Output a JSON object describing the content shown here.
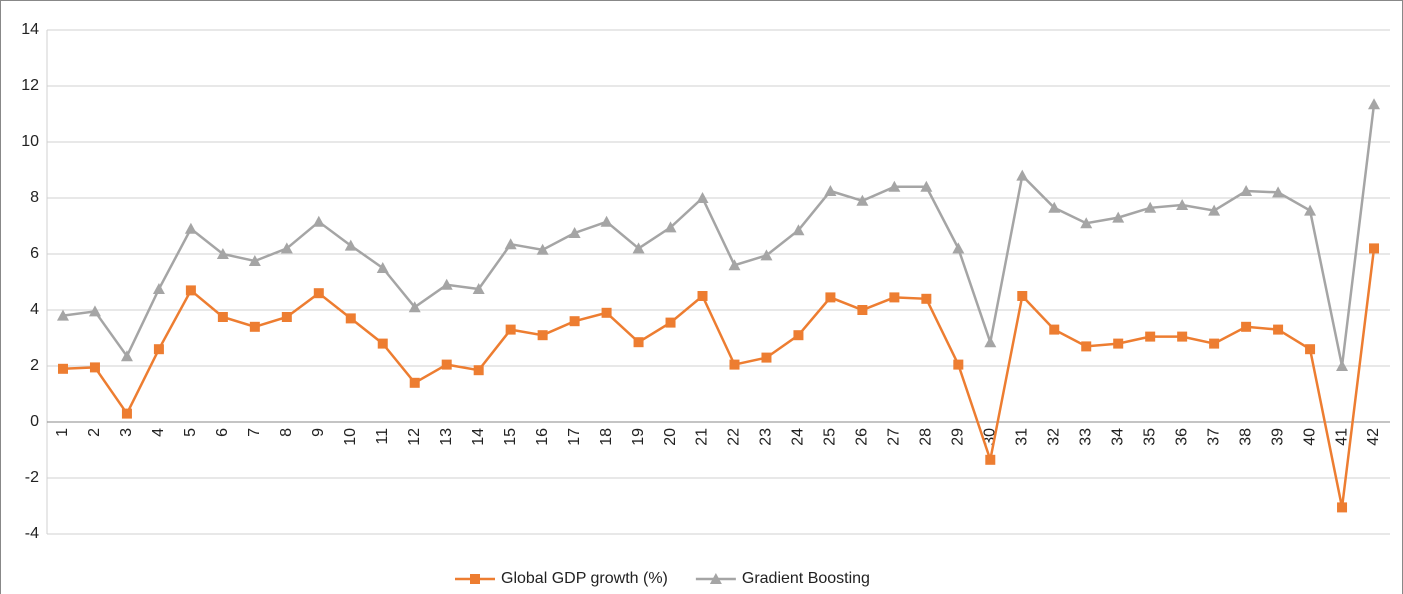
{
  "chart_data": {
    "type": "line",
    "categories": [
      "1",
      "2",
      "3",
      "4",
      "5",
      "6",
      "7",
      "8",
      "9",
      "10",
      "11",
      "12",
      "13",
      "14",
      "15",
      "16",
      "17",
      "18",
      "19",
      "20",
      "21",
      "22",
      "23",
      "24",
      "25",
      "26",
      "27",
      "28",
      "29",
      "30",
      "31",
      "32",
      "33",
      "34",
      "35",
      "36",
      "37",
      "38",
      "39",
      "40",
      "41",
      "42"
    ],
    "series": [
      {
        "name": "Global GDP growth (%)",
        "color": "#ed7d31",
        "marker": "square",
        "values": [
          1.9,
          1.95,
          0.3,
          2.6,
          4.7,
          3.75,
          3.4,
          3.75,
          4.6,
          3.7,
          2.8,
          1.4,
          2.05,
          1.85,
          3.3,
          3.1,
          3.6,
          3.9,
          2.85,
          3.55,
          4.5,
          2.05,
          2.3,
          3.1,
          4.45,
          4.0,
          4.45,
          4.4,
          2.05,
          -1.35,
          4.5,
          3.3,
          2.7,
          2.8,
          3.05,
          3.05,
          2.8,
          3.4,
          3.3,
          2.6,
          -3.05,
          6.2
        ]
      },
      {
        "name": "Gradient Boosting",
        "color": "#a5a5a5",
        "marker": "triangle",
        "values": [
          3.8,
          3.95,
          2.35,
          4.75,
          6.9,
          6.0,
          5.75,
          6.2,
          7.15,
          6.3,
          5.5,
          4.1,
          4.9,
          4.75,
          6.35,
          6.15,
          6.75,
          7.15,
          6.2,
          6.95,
          8.0,
          5.6,
          5.95,
          6.85,
          8.25,
          7.9,
          8.4,
          8.4,
          6.2,
          2.85,
          8.8,
          7.65,
          7.1,
          7.3,
          7.65,
          7.75,
          7.55,
          8.25,
          8.2,
          7.55,
          2.0,
          11.35
        ]
      }
    ],
    "ylim": [
      -4,
      14
    ],
    "yticks": [
      -4,
      -2,
      0,
      2,
      4,
      6,
      8,
      10,
      12,
      14
    ],
    "grid": true,
    "legend": "bottom"
  }
}
